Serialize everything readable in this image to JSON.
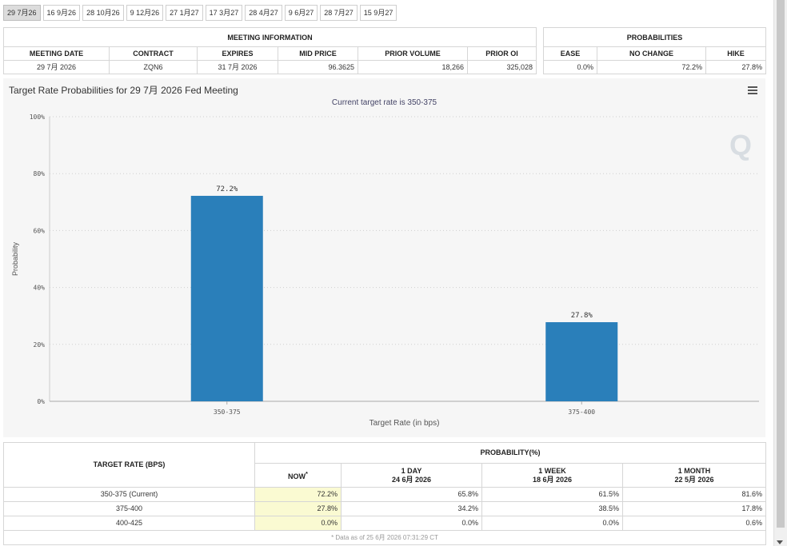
{
  "tabs": [
    "29 7月26",
    "16 9月26",
    "28 10月26",
    "9 12月26",
    "27 1月27",
    "17 3月27",
    "28 4月27",
    "9 6月27",
    "28 7月27",
    "15 9月27"
  ],
  "meeting_info": {
    "title": "MEETING INFORMATION",
    "headers": [
      "MEETING DATE",
      "CONTRACT",
      "EXPIRES",
      "MID PRICE",
      "PRIOR VOLUME",
      "PRIOR OI"
    ],
    "row": [
      "29 7月 2026",
      "ZQN6",
      "31 7月 2026",
      "96.3625",
      "18,266",
      "325,028"
    ]
  },
  "probabilities": {
    "title": "PROBABILITIES",
    "headers": [
      "EASE",
      "NO CHANGE",
      "HIKE"
    ],
    "row": [
      "0.0%",
      "72.2%",
      "27.8%"
    ]
  },
  "chart": {
    "title": "Target Rate Probabilities for 29 7月 2026 Fed Meeting",
    "subtitle": "Current target rate is 350-375",
    "menu_icon": "hamburger-menu-icon",
    "watermark": "Q",
    "bar_color": "#2a7fba"
  },
  "chart_data": {
    "type": "bar",
    "title": "Target Rate Probabilities for 29 7月 2026 Fed Meeting",
    "subtitle": "Current target rate is 350-375",
    "categories": [
      "350-375",
      "375-400"
    ],
    "values": [
      72.2,
      27.8
    ],
    "data_labels": [
      "72.2%",
      "27.8%"
    ],
    "xlabel": "Target Rate (in bps)",
    "ylabel": "Probability",
    "ylim": [
      0,
      100
    ],
    "yticks": [
      0,
      20,
      40,
      60,
      80,
      100
    ],
    "ytick_labels": [
      "0%",
      "20%",
      "40%",
      "60%",
      "80%",
      "100%"
    ],
    "grid": true,
    "legend": "none"
  },
  "bottom_table": {
    "target_header": "TARGET RATE (BPS)",
    "prob_header": "PROBABILITY(%)",
    "columns": [
      {
        "label": "NOW",
        "sup": "*",
        "date": ""
      },
      {
        "label": "1 DAY",
        "date": "24 6月 2026"
      },
      {
        "label": "1 WEEK",
        "date": "18 6月 2026"
      },
      {
        "label": "1 MONTH",
        "date": "22 5月 2026"
      }
    ],
    "rows": [
      {
        "rate": "350-375 (Current)",
        "values": [
          "72.2%",
          "65.8%",
          "61.5%",
          "81.6%"
        ]
      },
      {
        "rate": "375-400",
        "values": [
          "27.8%",
          "34.2%",
          "38.5%",
          "17.8%"
        ]
      },
      {
        "rate": "400-425",
        "values": [
          "0.0%",
          "0.0%",
          "0.0%",
          "0.6%"
        ]
      }
    ],
    "footnote": "* Data as of 25 6月 2026 07:31:29 CT"
  }
}
